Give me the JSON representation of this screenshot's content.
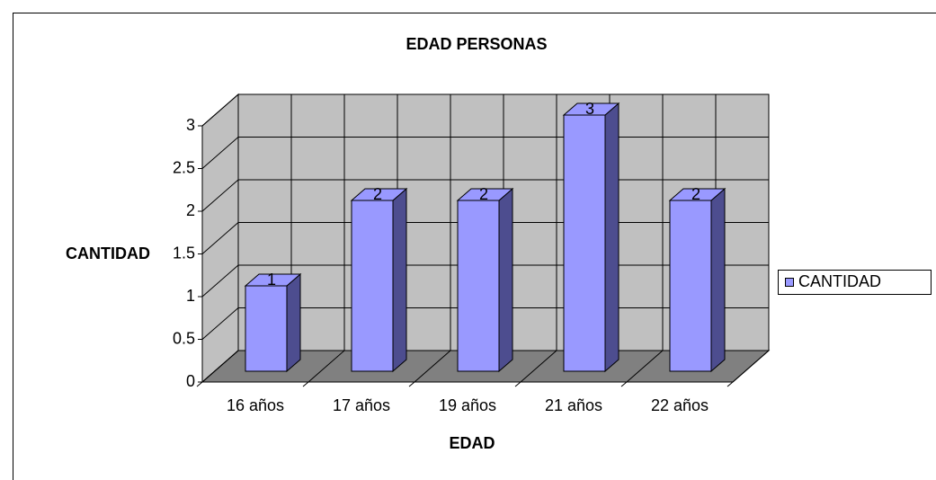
{
  "chart_data": {
    "type": "bar3d",
    "title": "EDAD PERSONAS",
    "x_label": "EDAD",
    "y_label": "CANTIDAD",
    "categories": [
      "16 años",
      "17 años",
      "19 años",
      "21 años",
      "22 años"
    ],
    "series": [
      {
        "name": "CANTIDAD",
        "color": "#9999ff",
        "values": [
          1,
          2,
          2,
          3,
          2
        ]
      }
    ],
    "ylim": [
      0,
      3
    ],
    "yticks": [
      0,
      0.5,
      1,
      1.5,
      2,
      2.5,
      3
    ],
    "grid": true,
    "legend": "right"
  }
}
